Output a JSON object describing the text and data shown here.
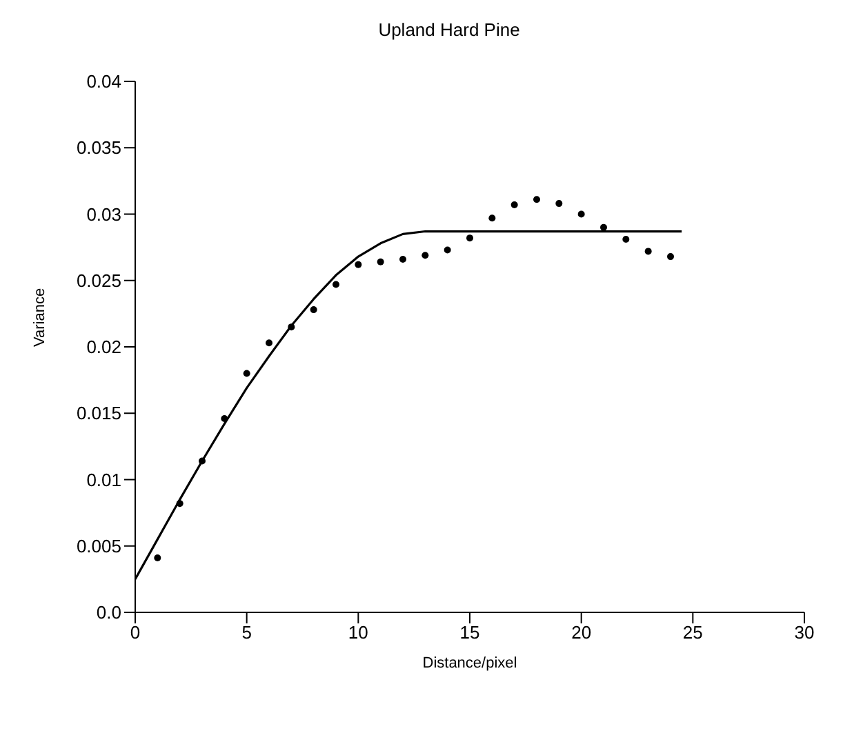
{
  "chart_data": {
    "type": "scatter",
    "title": "Upland Hard Pine",
    "xlabel": "Distance/pixel",
    "ylabel": "Variance",
    "xlim": [
      0,
      30
    ],
    "xticks": [
      0,
      5,
      10,
      15,
      20,
      25,
      30
    ],
    "ylim": [
      0,
      0.04
    ],
    "yticks": [
      {
        "value": 0,
        "label": "0.0"
      },
      0.005,
      0.01,
      0.015,
      0.02,
      0.025,
      0.03,
      0.035,
      0.04
    ],
    "grid": false,
    "legend": false,
    "series": [
      {
        "type": "scatter",
        "color": "#000000",
        "marker": "circle",
        "x": [
          1,
          2,
          3,
          4,
          5,
          6,
          7,
          8,
          9,
          10,
          11,
          12,
          13,
          14,
          15,
          16,
          17,
          18,
          19,
          20,
          21,
          22,
          23,
          24
        ],
        "values": [
          0.0041,
          0.0082,
          0.0114,
          0.0146,
          0.018,
          0.0203,
          0.0215,
          0.0228,
          0.0247,
          0.0262,
          0.0264,
          0.0266,
          0.0269,
          0.0273,
          0.0282,
          0.0297,
          0.0307,
          0.0311,
          0.0308,
          0.03,
          0.029,
          0.0281,
          0.0272,
          0.0268
        ]
      },
      {
        "type": "line",
        "color": "#000000",
        "marker": "none",
        "line_style": "solid",
        "x": [
          0,
          1,
          2,
          3,
          4,
          5,
          6,
          7,
          8,
          9,
          10,
          11,
          12,
          13,
          24.5
        ],
        "values": [
          0.0025,
          0.0055,
          0.0085,
          0.0114,
          0.0142,
          0.0169,
          0.0193,
          0.0216,
          0.0236,
          0.0254,
          0.0268,
          0.0278,
          0.0285,
          0.0287,
          0.0287
        ]
      }
    ]
  }
}
